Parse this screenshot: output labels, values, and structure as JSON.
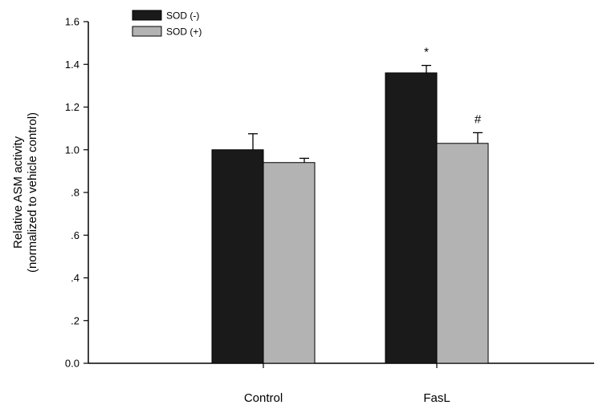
{
  "chart_data": {
    "type": "bar",
    "categories": [
      "Control",
      "FasL"
    ],
    "series": [
      {
        "name": "SOD (-)",
        "color": "#1a1a1a",
        "values": [
          1.0,
          1.36
        ],
        "errors": [
          0.075,
          0.035
        ]
      },
      {
        "name": "SOD (+)",
        "color": "#b3b3b3",
        "values": [
          0.94,
          1.03
        ],
        "errors": [
          0.02,
          0.05
        ]
      }
    ],
    "annotations": [
      {
        "category": "FasL",
        "series": "SOD (-)",
        "text": "*"
      },
      {
        "category": "FasL",
        "series": "SOD (+)",
        "text": "#"
      }
    ],
    "ylabel_line1": "Relative ASM activity",
    "ylabel_line2": "(normalized to vehicle control)",
    "ylim": [
      0,
      1.6
    ],
    "yticks": [
      {
        "value": 0.0,
        "label": "0.0"
      },
      {
        "value": 0.2,
        "label": ".2"
      },
      {
        "value": 0.4,
        "label": ".4"
      },
      {
        "value": 0.6,
        "label": ".6"
      },
      {
        "value": 0.8,
        "label": ".8"
      },
      {
        "value": 1.0,
        "label": "1.0"
      },
      {
        "value": 1.2,
        "label": "1.2"
      },
      {
        "value": 1.4,
        "label": "1.4"
      },
      {
        "value": 1.6,
        "label": "1.6"
      }
    ],
    "legend_position": "top-left",
    "grid": false
  }
}
